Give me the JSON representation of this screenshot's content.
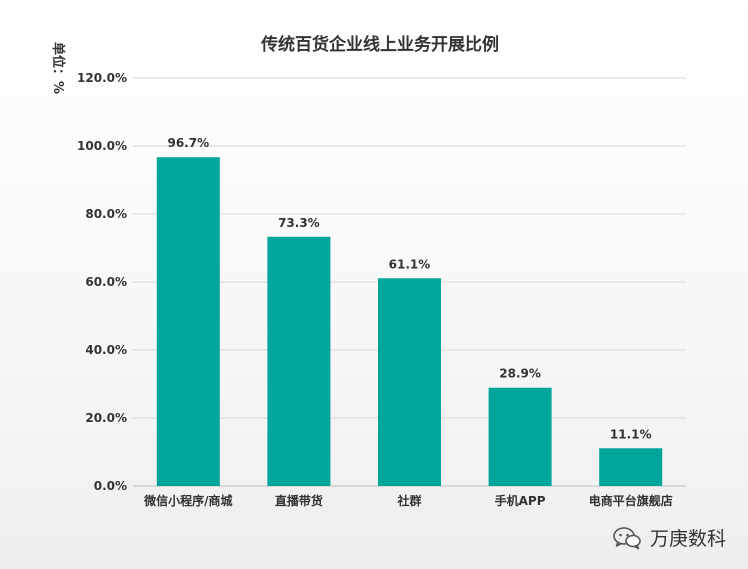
{
  "chart_data": {
    "type": "bar",
    "title": "传统百货企业线上业务开展比例",
    "ylabel": "单位：%",
    "xlabel": "",
    "categories": [
      "微信小程序/商城",
      "直播带货",
      "社群",
      "手机APP",
      "电商平台旗舰店"
    ],
    "values": [
      96.7,
      73.3,
      61.1,
      28.9,
      11.1
    ],
    "value_labels": [
      "96.7%",
      "73.3%",
      "61.1%",
      "28.9%",
      "11.1%"
    ],
    "yticks": [
      0,
      20,
      40,
      60,
      80,
      100,
      120
    ],
    "ytick_labels": [
      "0.0%",
      "20.0%",
      "40.0%",
      "60.0%",
      "80.0%",
      "100.0%",
      "120.0%"
    ],
    "ylim": [
      0,
      120
    ],
    "grid": true,
    "bar_color": "#00A59B"
  },
  "watermark": {
    "text": "万庚数科",
    "icon": "wechat-icon"
  }
}
